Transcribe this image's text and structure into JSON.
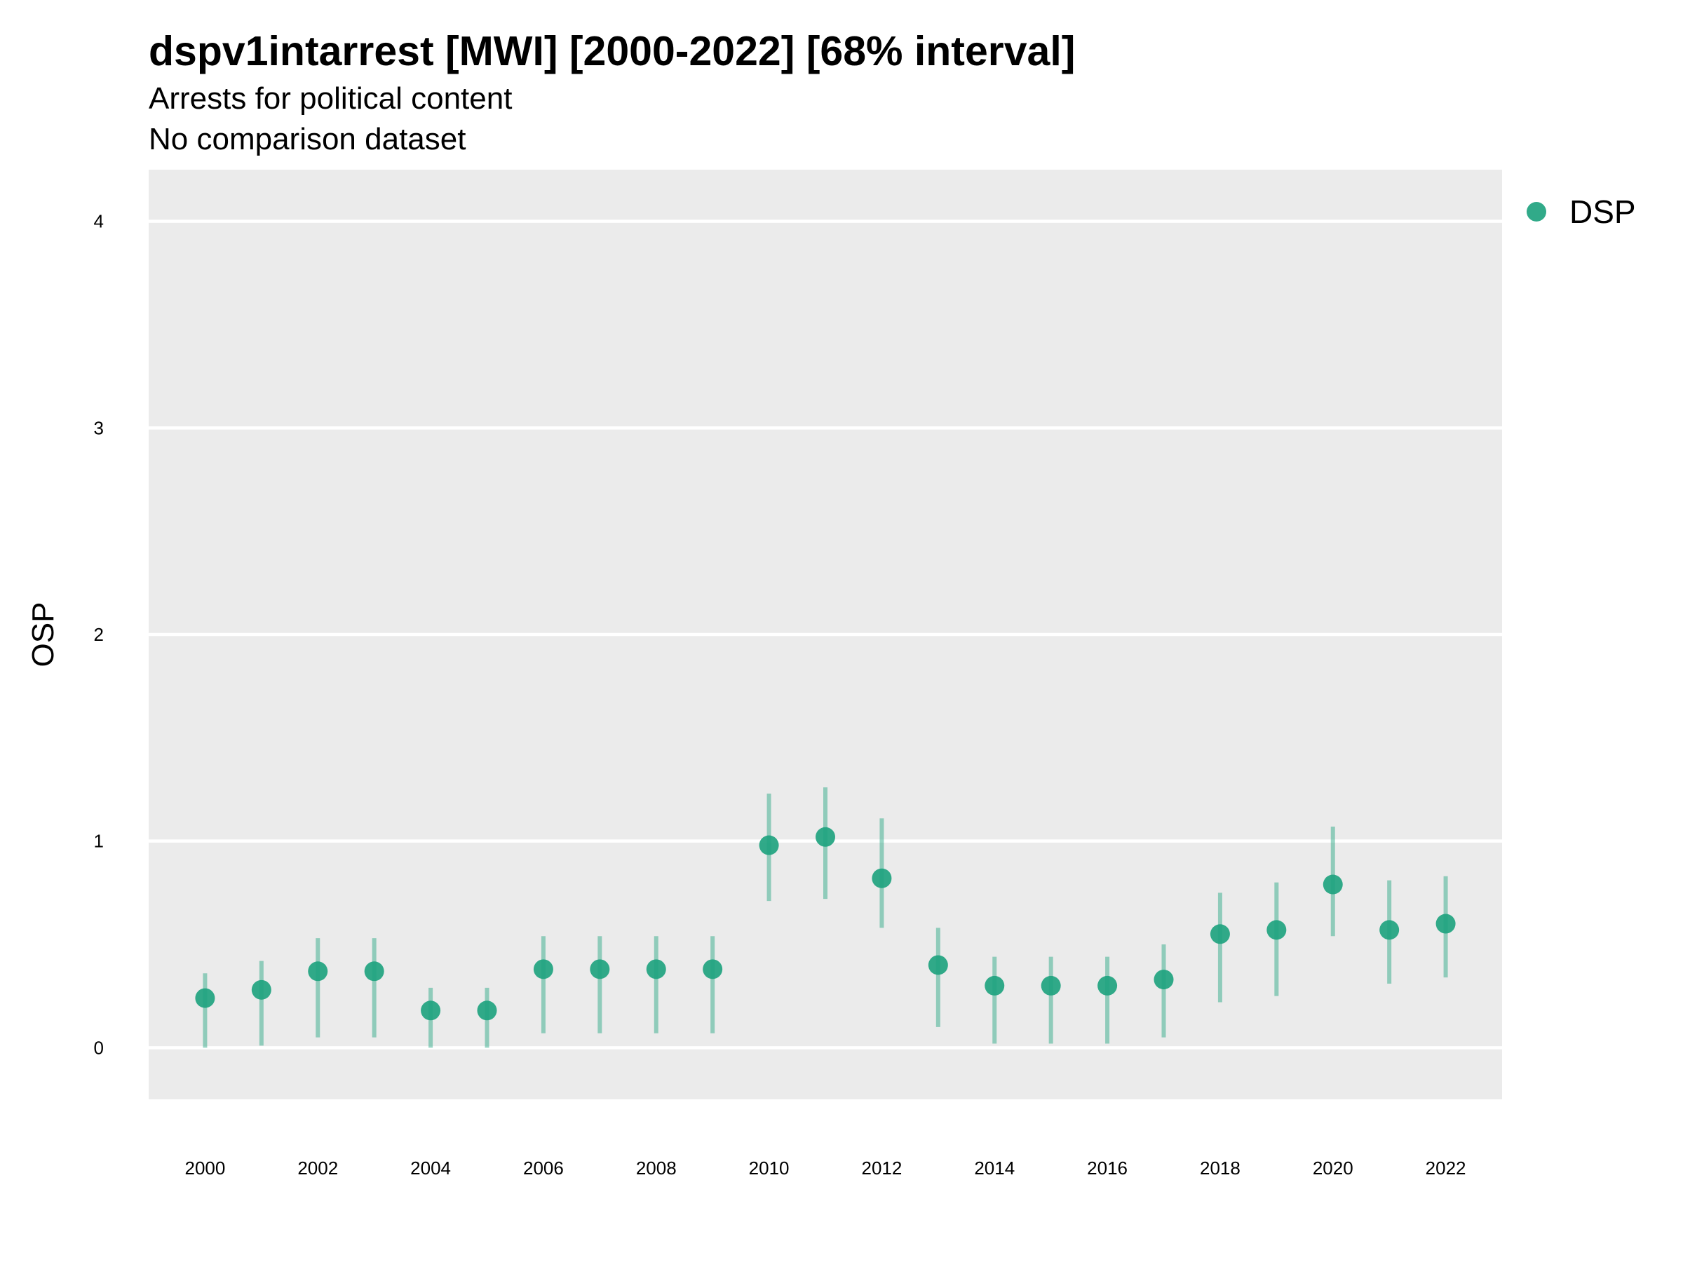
{
  "chart_data": {
    "type": "scatter",
    "title": "dspv1intarrest [MWI] [2000-2022] [68% interval]",
    "subtitle": "Arrests for political content",
    "subtitle2": "No comparison dataset",
    "xlabel": "",
    "ylabel": "OSP",
    "ylim": [
      -0.25,
      4.25
    ],
    "xlim": [
      1999,
      2023
    ],
    "y_ticks": [
      "0",
      "1",
      "2",
      "3",
      "4"
    ],
    "x_ticks": [
      "2000",
      "2002",
      "2004",
      "2006",
      "2008",
      "2010",
      "2012",
      "2014",
      "2016",
      "2018",
      "2020",
      "2022"
    ],
    "grid": true,
    "legend_position": "right",
    "series": [
      {
        "name": "DSP",
        "color": "#1fa37f",
        "points": [
          {
            "x": 2000,
            "y": 0.24,
            "lo": 0.0,
            "hi": 0.36
          },
          {
            "x": 2001,
            "y": 0.28,
            "lo": 0.01,
            "hi": 0.42
          },
          {
            "x": 2002,
            "y": 0.37,
            "lo": 0.05,
            "hi": 0.53
          },
          {
            "x": 2003,
            "y": 0.37,
            "lo": 0.05,
            "hi": 0.53
          },
          {
            "x": 2004,
            "y": 0.18,
            "lo": 0.0,
            "hi": 0.29
          },
          {
            "x": 2005,
            "y": 0.18,
            "lo": 0.0,
            "hi": 0.29
          },
          {
            "x": 2006,
            "y": 0.38,
            "lo": 0.07,
            "hi": 0.54
          },
          {
            "x": 2007,
            "y": 0.38,
            "lo": 0.07,
            "hi": 0.54
          },
          {
            "x": 2008,
            "y": 0.38,
            "lo": 0.07,
            "hi": 0.54
          },
          {
            "x": 2009,
            "y": 0.38,
            "lo": 0.07,
            "hi": 0.54
          },
          {
            "x": 2010,
            "y": 0.98,
            "lo": 0.71,
            "hi": 1.23
          },
          {
            "x": 2011,
            "y": 1.02,
            "lo": 0.72,
            "hi": 1.26
          },
          {
            "x": 2012,
            "y": 0.82,
            "lo": 0.58,
            "hi": 1.11
          },
          {
            "x": 2013,
            "y": 0.4,
            "lo": 0.1,
            "hi": 0.58
          },
          {
            "x": 2014,
            "y": 0.3,
            "lo": 0.02,
            "hi": 0.44
          },
          {
            "x": 2015,
            "y": 0.3,
            "lo": 0.02,
            "hi": 0.44
          },
          {
            "x": 2016,
            "y": 0.3,
            "lo": 0.02,
            "hi": 0.44
          },
          {
            "x": 2017,
            "y": 0.33,
            "lo": 0.05,
            "hi": 0.5
          },
          {
            "x": 2018,
            "y": 0.55,
            "lo": 0.22,
            "hi": 0.75
          },
          {
            "x": 2019,
            "y": 0.57,
            "lo": 0.25,
            "hi": 0.8
          },
          {
            "x": 2020,
            "y": 0.79,
            "lo": 0.54,
            "hi": 1.07
          },
          {
            "x": 2021,
            "y": 0.57,
            "lo": 0.31,
            "hi": 0.81
          },
          {
            "x": 2022,
            "y": 0.6,
            "lo": 0.34,
            "hi": 0.83
          }
        ]
      }
    ]
  }
}
